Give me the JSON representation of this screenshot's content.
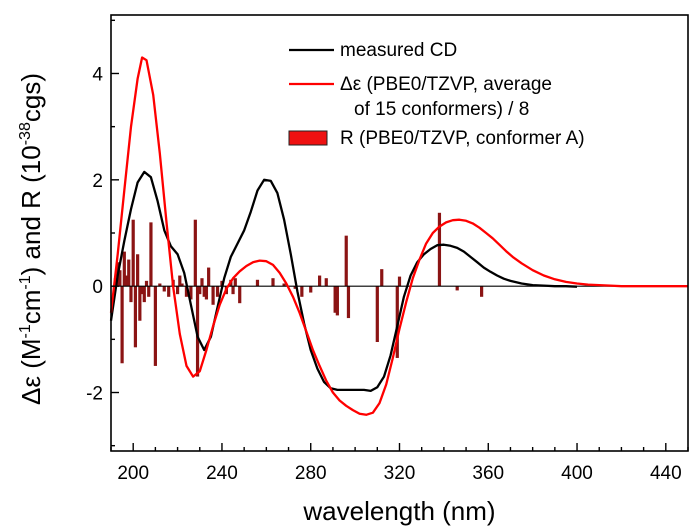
{
  "chart_data": {
    "type": "line",
    "xlabel": "wavelength (nm)",
    "ylabel": {
      "p1": "Δε (M",
      "s1": "-1",
      "p2": "cm",
      "s2": "-1",
      "p3": ") and R (10",
      "s3": "-38",
      "p4": "cgs)"
    },
    "xlim": [
      190,
      450
    ],
    "ylim": [
      -3.1,
      5.1
    ],
    "xticks": [
      200,
      240,
      280,
      320,
      360,
      400,
      440
    ],
    "yticks": [
      -2,
      0,
      2,
      4
    ],
    "grid": false,
    "legend_position": "top-right",
    "legend": [
      {
        "label": "measured CD",
        "kind": "line",
        "color": "#000000"
      },
      {
        "label": "Δε (PBE0/TZVP, average",
        "label2": "of 15 conformers) / 8",
        "kind": "line",
        "color": "#ff0000"
      },
      {
        "label": "R (PBE0/TZVP, conformer A)",
        "kind": "bar",
        "color": "#ee1111"
      }
    ],
    "series": [
      {
        "name": "measured CD",
        "color": "#000000",
        "x": [
          190,
          193,
          196,
          199,
          202,
          205,
          208,
          211,
          214,
          217,
          220,
          223,
          226,
          229,
          232,
          235,
          238,
          241,
          244,
          247,
          250,
          253,
          256,
          259,
          262,
          265,
          268,
          271,
          274,
          277,
          280,
          283,
          286,
          289,
          292,
          295,
          298,
          301,
          304,
          307,
          310,
          313,
          316,
          319,
          322,
          325,
          328,
          331,
          334,
          337,
          340,
          343,
          346,
          349,
          352,
          355,
          358,
          361,
          364,
          367,
          370,
          375,
          380,
          385,
          390,
          395,
          400
        ],
        "y": [
          -0.65,
          0.2,
          0.85,
          1.45,
          1.95,
          2.15,
          2.05,
          1.6,
          1.05,
          0.75,
          0.6,
          0.25,
          -0.35,
          -0.95,
          -1.2,
          -0.95,
          -0.4,
          0.15,
          0.55,
          0.8,
          1.05,
          1.4,
          1.8,
          2.0,
          1.98,
          1.75,
          1.25,
          0.6,
          -0.1,
          -0.7,
          -1.2,
          -1.55,
          -1.8,
          -1.92,
          -1.95,
          -1.95,
          -1.95,
          -1.95,
          -1.95,
          -1.97,
          -1.9,
          -1.7,
          -1.3,
          -0.75,
          -0.2,
          0.2,
          0.45,
          0.6,
          0.7,
          0.77,
          0.78,
          0.76,
          0.72,
          0.65,
          0.55,
          0.45,
          0.35,
          0.27,
          0.2,
          0.14,
          0.1,
          0.05,
          0.02,
          0.01,
          0.0,
          0.0,
          -0.01
        ]
      },
      {
        "name": "Δε (PBE0/TZVP, average of 15 conformers) / 8",
        "color": "#ff0000",
        "x": [
          190,
          193,
          196,
          199,
          202,
          204,
          206,
          209,
          212,
          215,
          218,
          221,
          224,
          227,
          230,
          233,
          236,
          239,
          242,
          245,
          248,
          251,
          254,
          257,
          260,
          263,
          266,
          269,
          272,
          275,
          278,
          281,
          284,
          287,
          290,
          293,
          296,
          299,
          302,
          305,
          308,
          311,
          314,
          317,
          320,
          323,
          326,
          329,
          332,
          335,
          338,
          341,
          344,
          347,
          350,
          353,
          356,
          359,
          362,
          365,
          368,
          371,
          375,
          380,
          385,
          390,
          395,
          400,
          405,
          410,
          415,
          420,
          425,
          430,
          435,
          440,
          445,
          450
        ],
        "y": [
          -0.5,
          0.6,
          1.8,
          3.0,
          3.9,
          4.3,
          4.25,
          3.6,
          2.5,
          1.2,
          0.0,
          -0.9,
          -1.5,
          -1.7,
          -1.6,
          -1.2,
          -0.75,
          -0.35,
          -0.05,
          0.15,
          0.28,
          0.38,
          0.45,
          0.48,
          0.47,
          0.4,
          0.25,
          0.05,
          -0.2,
          -0.5,
          -0.85,
          -1.2,
          -1.5,
          -1.78,
          -2.0,
          -2.15,
          -2.25,
          -2.33,
          -2.4,
          -2.42,
          -2.38,
          -2.2,
          -1.85,
          -1.35,
          -0.8,
          -0.3,
          0.15,
          0.5,
          0.8,
          1.0,
          1.12,
          1.2,
          1.24,
          1.25,
          1.23,
          1.18,
          1.1,
          1.0,
          0.9,
          0.78,
          0.66,
          0.55,
          0.43,
          0.3,
          0.2,
          0.13,
          0.08,
          0.05,
          0.03,
          0.02,
          0.01,
          0.0,
          0.0,
          0.0,
          0.0,
          0.0,
          0.0,
          0.0
        ]
      }
    ],
    "sticks": {
      "name": "R (PBE0/TZVP, conformer A)",
      "color": "#8b1414",
      "x": [
        192,
        193,
        194,
        195,
        196,
        197,
        198,
        199,
        200,
        201,
        202,
        203,
        204,
        205,
        206,
        207,
        208,
        210,
        212,
        214,
        216,
        218,
        220,
        221,
        222,
        224,
        226,
        228,
        229,
        230,
        231,
        232,
        233,
        234,
        236,
        238,
        240,
        242,
        244,
        245,
        246,
        248,
        256,
        263,
        268,
        273,
        276,
        280,
        284,
        287,
        291,
        292,
        296,
        297,
        310,
        312,
        319,
        320,
        338,
        346,
        357
      ],
      "y": [
        0.15,
        0.45,
        0.3,
        -1.45,
        0.65,
        0.2,
        0.5,
        -0.3,
        1.25,
        -1.15,
        0.6,
        -0.65,
        -0.15,
        -0.3,
        0.1,
        -0.2,
        1.2,
        -1.5,
        0.05,
        -0.1,
        -0.2,
        0.12,
        -0.15,
        0.2,
        0.05,
        -0.2,
        -0.25,
        1.25,
        -1.7,
        -0.15,
        0.15,
        -0.2,
        -0.25,
        0.35,
        -0.35,
        -0.2,
        0.1,
        -0.15,
        0.12,
        -0.15,
        0.15,
        -0.32,
        0.12,
        0.15,
        0.05,
        -0.05,
        -0.2,
        -0.12,
        0.2,
        0.15,
        -0.5,
        -0.55,
        0.95,
        -0.6,
        -1.05,
        0.32,
        -1.35,
        0.18,
        1.38,
        -0.08,
        -0.2
      ]
    }
  }
}
